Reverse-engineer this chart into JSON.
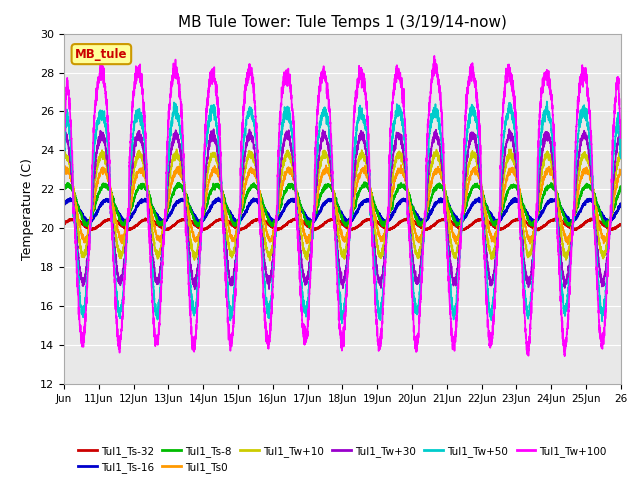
{
  "title": "MB Tule Tower: Tule Temps 1 (3/19/14-now)",
  "ylabel": "Temperature (C)",
  "xlim": [
    0,
    15
  ],
  "ylim": [
    12,
    30
  ],
  "yticks": [
    12,
    14,
    16,
    18,
    20,
    22,
    24,
    26,
    28,
    30
  ],
  "xtick_labels": [
    "Jun",
    "11Jun",
    "12Jun",
    "13Jun",
    "14Jun",
    "15Jun",
    "16Jun",
    "17Jun",
    "18Jun",
    "19Jun",
    "20Jun",
    "21Jun",
    "22Jun",
    "23Jun",
    "24Jun",
    "25Jun",
    "26"
  ],
  "legend_box_label": "MB_tule",
  "series_order": [
    "Tul1_Ts-32",
    "Tul1_Ts-16",
    "Tul1_Ts-8",
    "Tul1_Ts0",
    "Tul1_Tw+10",
    "Tul1_Tw+30",
    "Tul1_Tw+50",
    "Tul1_Tw+100"
  ],
  "series": {
    "Tul1_Ts-32": {
      "color": "#cc0000",
      "lw": 1.5,
      "base": 20.2,
      "amp": 0.25,
      "phase": 0.0
    },
    "Tul1_Ts-16": {
      "color": "#0000cc",
      "lw": 1.5,
      "base": 20.9,
      "amp": 0.6,
      "phase": 0.5
    },
    "Tul1_Ts-8": {
      "color": "#00bb00",
      "lw": 1.2,
      "base": 21.2,
      "amp": 1.1,
      "phase": 0.9
    },
    "Tul1_Ts0": {
      "color": "#ff9900",
      "lw": 1.2,
      "base": 21.2,
      "amp": 2.0,
      "phase": 1.2
    },
    "Tul1_Tw+10": {
      "color": "#cccc00",
      "lw": 1.2,
      "base": 21.2,
      "amp": 2.8,
      "phase": 1.4
    },
    "Tul1_Tw+30": {
      "color": "#9900cc",
      "lw": 1.2,
      "base": 21.0,
      "amp": 4.0,
      "phase": 1.5
    },
    "Tul1_Tw+50": {
      "color": "#00cccc",
      "lw": 1.2,
      "base": 20.8,
      "amp": 5.5,
      "phase": 1.55
    },
    "Tul1_Tw+100": {
      "color": "#ff00ff",
      "lw": 1.2,
      "base": 21.0,
      "amp": 7.5,
      "phase": 1.6
    }
  },
  "background_color": "#ffffff",
  "plot_bg_color": "#e8e8e8",
  "grid_color": "#ffffff",
  "title_fontsize": 11,
  "legend_box_color": "#ffff99",
  "legend_box_edge": "#cc9900"
}
